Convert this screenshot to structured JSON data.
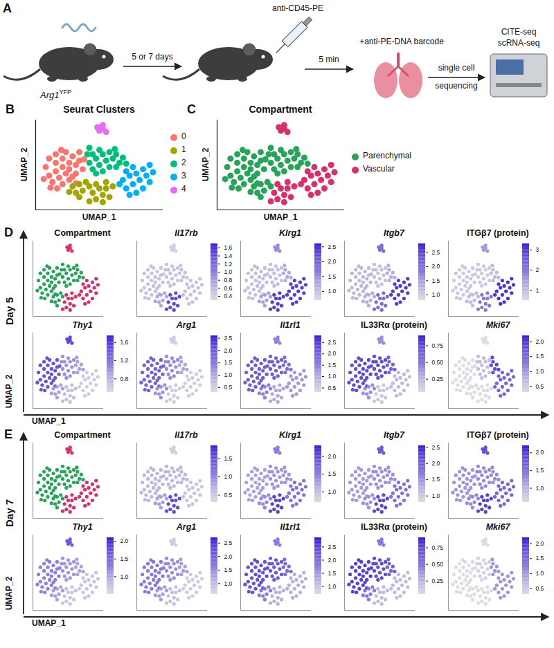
{
  "schematic": {
    "letter": "A",
    "mouse_label": "Arg1",
    "mouse_label_superscript": "YFP",
    "step1": "5 or 7 days",
    "injection": "anti-CD45-PE",
    "step2": "5 min",
    "stain": "+anti-PE-DNA barcode",
    "step3": [
      "single cell",
      "sequencing"
    ],
    "method": [
      "CITE-seq",
      "scRNA-seq"
    ]
  },
  "umap": {
    "xlim": [
      -8,
      11
    ],
    "ylim": [
      -8,
      13
    ],
    "xlabel": "UMAP_1",
    "ylabel": "UMAP_2",
    "tick_labels": false,
    "cells": [
      [
        -6.5,
        2,
        0
      ],
      [
        -6,
        0,
        0
      ],
      [
        -6,
        4,
        0
      ],
      [
        -5.5,
        -1.5,
        0
      ],
      [
        -5,
        1,
        0
      ],
      [
        -5,
        3,
        0
      ],
      [
        -5,
        5,
        0
      ],
      [
        -4.5,
        -0.5,
        0
      ],
      [
        -4,
        2,
        0
      ],
      [
        -4,
        4,
        0
      ],
      [
        -4,
        -2,
        0
      ],
      [
        -3.5,
        0.5,
        0
      ],
      [
        -3.5,
        5.5,
        0
      ],
      [
        -3,
        3,
        0
      ],
      [
        -3,
        1.5,
        0
      ],
      [
        -3,
        -1,
        0
      ],
      [
        -2.5,
        4.5,
        0
      ],
      [
        -2,
        2.5,
        0
      ],
      [
        -2,
        0.5,
        0
      ],
      [
        -1.5,
        3.5,
        0
      ],
      [
        -1.5,
        5.5,
        0
      ],
      [
        -1,
        1.5,
        0
      ],
      [
        -5.8,
        -2.8,
        0
      ],
      [
        -4.8,
        -3,
        0
      ],
      [
        -2.5,
        -0.2,
        0
      ],
      [
        -6.8,
        -0.8,
        0
      ],
      [
        -2,
        -1.8,
        0
      ],
      [
        -0.8,
        3.8,
        0
      ],
      [
        -4.2,
        6,
        0
      ],
      [
        0,
        3,
        1
      ],
      [
        0.5,
        5,
        1
      ],
      [
        0.5,
        1.5,
        1
      ],
      [
        1,
        4,
        1
      ],
      [
        1.5,
        2.5,
        1
      ],
      [
        1.5,
        6,
        1
      ],
      [
        2,
        5,
        1
      ],
      [
        2,
        1,
        1
      ],
      [
        2.5,
        3.5,
        1
      ],
      [
        3,
        2,
        1
      ],
      [
        0,
        6.5,
        1
      ],
      [
        -0.3,
        5,
        1
      ],
      [
        1,
        0.5,
        1
      ],
      [
        3,
        5.5,
        1
      ],
      [
        3.5,
        4,
        2
      ],
      [
        4,
        5,
        2
      ],
      [
        4.5,
        3,
        2
      ],
      [
        4,
        2,
        2
      ],
      [
        5,
        4.2,
        2
      ],
      [
        3.8,
        6.2,
        2
      ],
      [
        5.5,
        2.8,
        2
      ],
      [
        -2.5,
        -2.5,
        3
      ],
      [
        -2,
        -4,
        3
      ],
      [
        -1.5,
        -2,
        3
      ],
      [
        -1,
        -3.5,
        3
      ],
      [
        -0.5,
        -1.5,
        3
      ],
      [
        -1.5,
        -5,
        3
      ],
      [
        0,
        -2.5,
        3
      ],
      [
        -3,
        -3.8,
        3
      ],
      [
        0.5,
        -4,
        4
      ],
      [
        1,
        -2,
        4
      ],
      [
        1,
        -5.5,
        4
      ],
      [
        1.5,
        -3,
        4
      ],
      [
        2,
        -4.5,
        4
      ],
      [
        2.5,
        -1.5,
        4
      ],
      [
        2.5,
        -3,
        4
      ],
      [
        3,
        -5,
        4
      ],
      [
        3.5,
        -2.5,
        4
      ],
      [
        0,
        -6,
        4
      ],
      [
        2,
        -6.2,
        4
      ],
      [
        5,
        -1,
        5
      ],
      [
        5.5,
        1,
        5
      ],
      [
        5.5,
        -3,
        5
      ],
      [
        6,
        0,
        5
      ],
      [
        6.5,
        2,
        5
      ],
      [
        6.5,
        -2,
        5
      ],
      [
        7,
        -4,
        5
      ],
      [
        7,
        0.5,
        5
      ],
      [
        7.5,
        -1,
        5
      ],
      [
        8,
        1.5,
        5
      ],
      [
        8,
        -3,
        5
      ],
      [
        8.5,
        0,
        5
      ],
      [
        9,
        -1.5,
        5
      ],
      [
        9,
        2.5,
        5
      ],
      [
        9.5,
        0.8,
        5
      ],
      [
        6,
        -4.5,
        5
      ],
      [
        4.5,
        -2,
        5
      ],
      [
        1.5,
        10.5,
        6
      ],
      [
        2,
        11,
        6
      ],
      [
        2.5,
        10.2,
        6
      ],
      [
        2,
        11.8,
        6
      ],
      [
        1.2,
        11.3,
        6
      ]
    ],
    "groups": {
      "cluster": [
        "0",
        "2",
        "2",
        "1",
        "1",
        "3",
        "4"
      ],
      "compartment": [
        "Parenchymal",
        "Parenchymal",
        "Parenchymal",
        "Parenchymal",
        "Vascular",
        "Vascular",
        "Vascular"
      ]
    }
  },
  "sections": [
    {
      "letter": "D",
      "label": "Day 5"
    },
    {
      "letter": "E",
      "label": "Day 7"
    }
  ],
  "chart_data": [
    {
      "type": "scatter",
      "letter": "B",
      "title": "Seurat Clusters",
      "legend": "right",
      "series": [
        {
          "name": "0",
          "color": "#f8766d"
        },
        {
          "name": "1",
          "color": "#a3a500"
        },
        {
          "name": "2",
          "color": "#00bf7d"
        },
        {
          "name": "3",
          "color": "#00b0f6"
        },
        {
          "name": "4",
          "color": "#e76bf3"
        }
      ]
    },
    {
      "type": "scatter",
      "letter": "C",
      "title": "Compartment",
      "legend": "right",
      "series": [
        {
          "name": "Parenchymal",
          "color": "#27a45a"
        },
        {
          "name": "Vascular",
          "color": "#d9306b"
        }
      ]
    },
    {
      "type": "scatter",
      "section": "D",
      "title": "Compartment",
      "series": [
        {
          "name": "Parenchymal",
          "color": "#27a45a"
        },
        {
          "name": "Vascular",
          "color": "#d9306b"
        }
      ]
    },
    {
      "type": "scatter",
      "section": "D",
      "title": "Il17rb",
      "values": [
        0.5,
        0.5,
        0.5,
        0.7,
        1.4,
        0.5,
        0.4
      ],
      "colorbar": {
        "lim": [
          0.3,
          1.7
        ],
        "ticks": [
          0.4,
          0.6,
          0.8,
          {
            "value": 1,
            "label": "1.0"
          },
          1.2,
          1.4,
          1.6
        ]
      }
    },
    {
      "type": "scatter",
      "section": "D",
      "title": "Klrg1",
      "values": [
        1.0,
        1.0,
        1.2,
        1.3,
        2.3,
        2.3,
        1.5
      ],
      "colorbar": {
        "lim": [
          0.7,
          2.6
        ],
        "ticks": [
          {
            "value": 1,
            "label": "1.0"
          },
          1.5,
          {
            "value": 2,
            "label": "2.0"
          },
          2.5
        ]
      }
    },
    {
      "type": "scatter",
      "section": "D",
      "title": "Itgb7",
      "values": [
        1.2,
        1.1,
        1.3,
        1.3,
        2.0,
        2.5,
        2.0
      ],
      "colorbar": {
        "lim": [
          0.8,
          2.8
        ],
        "ticks": [
          {
            "value": 1,
            "label": "1.0"
          },
          1.5,
          {
            "value": 2,
            "label": "2.0"
          },
          2.5
        ]
      }
    },
    {
      "type": "scatter",
      "section": "D",
      "title": "ITGβ7 (protein)",
      "values": [
        0.8,
        0.8,
        1.0,
        1.0,
        2.0,
        3.0,
        1.5
      ],
      "colorbar": {
        "lim": [
          0.5,
          3.3
        ],
        "ticks": [
          1,
          2,
          3
        ]
      }
    },
    {
      "type": "scatter",
      "section": "D",
      "title": "Thy1",
      "values": [
        1.4,
        1.0,
        0.9,
        0.9,
        0.7,
        0.6,
        1.5
      ],
      "colorbar": {
        "lim": [
          0.5,
          1.75
        ],
        "ticks": [
          0.8,
          1.2,
          1.6
        ]
      }
    },
    {
      "type": "scatter",
      "section": "D",
      "title": "Arg1",
      "values": [
        1.8,
        1.3,
        1.0,
        1.2,
        0.5,
        0.5,
        0.5
      ],
      "colorbar": {
        "lim": [
          0.3,
          2.6
        ],
        "ticks": [
          0.5,
          {
            "value": 1,
            "label": "1.0"
          },
          1.5,
          {
            "value": 2,
            "label": "2.0"
          },
          2.5
        ]
      }
    },
    {
      "type": "scatter",
      "section": "D",
      "title": "Il1rl1",
      "values": [
        2.0,
        2.0,
        1.8,
        1.5,
        1.0,
        1.2,
        1.5
      ],
      "colorbar": {
        "lim": [
          0.3,
          2.8
        ],
        "ticks": [
          0.5,
          {
            "value": 1,
            "label": "1.0"
          },
          1.5,
          {
            "value": 2,
            "label": "2.0"
          },
          2.5
        ]
      }
    },
    {
      "type": "scatter",
      "section": "D",
      "title": "IL33Rα (protein)",
      "values": [
        0.7,
        0.7,
        0.6,
        0.4,
        0.15,
        0.2,
        0.4
      ],
      "colorbar": {
        "lim": [
          0.05,
          0.9
        ],
        "ticks": [
          0.25,
          {
            "value": 0.5,
            "label": "0.50"
          },
          0.75
        ]
      }
    },
    {
      "type": "scatter",
      "section": "D",
      "title": "Mki67",
      "values": [
        0.3,
        0.6,
        1.8,
        0.3,
        0.3,
        1.5,
        0.3
      ],
      "colorbar": {
        "lim": [
          0.3,
          2.2
        ],
        "ticks": [
          0.5,
          {
            "value": 1,
            "label": "1.0"
          },
          1.5,
          {
            "value": 2,
            "label": "2.0"
          }
        ]
      }
    },
    {
      "type": "scatter",
      "section": "E",
      "title": "Compartment",
      "series": [
        {
          "name": "Parenchymal",
          "color": "#27a45a"
        },
        {
          "name": "Vascular",
          "color": "#d9306b"
        }
      ]
    },
    {
      "type": "scatter",
      "section": "E",
      "title": "Il17rb",
      "values": [
        0.6,
        0.6,
        0.6,
        0.8,
        1.5,
        0.5,
        0.4
      ],
      "colorbar": {
        "lim": [
          0.3,
          1.85
        ],
        "ticks": [
          0.5,
          {
            "value": 1,
            "label": "1.0"
          },
          1.5
        ]
      }
    },
    {
      "type": "scatter",
      "section": "E",
      "title": "Klrg1",
      "values": [
        1.2,
        1.3,
        1.3,
        1.4,
        2.0,
        1.6,
        1.5
      ],
      "colorbar": {
        "lim": [
          0.7,
          2.3
        ],
        "ticks": [
          {
            "value": 1,
            "label": "1.0"
          },
          1.5,
          {
            "value": 2,
            "label": "2.0"
          }
        ]
      }
    },
    {
      "type": "scatter",
      "section": "E",
      "title": "Itgb7",
      "values": [
        1.4,
        1.5,
        1.5,
        1.5,
        2.2,
        1.8,
        2.0
      ],
      "colorbar": {
        "lim": [
          0.8,
          2.55
        ],
        "ticks": [
          {
            "value": 1,
            "label": "1.0"
          },
          1.5,
          {
            "value": 2,
            "label": "2.0"
          },
          2.5
        ]
      }
    },
    {
      "type": "scatter",
      "section": "E",
      "title": "ITGβ7 (protein)",
      "values": [
        1.2,
        1.3,
        1.3,
        1.3,
        1.9,
        1.6,
        1.8
      ],
      "colorbar": {
        "lim": [
          0.6,
          2.2
        ],
        "ticks": [
          {
            "value": 1,
            "label": "1.0"
          },
          1.5,
          {
            "value": 2,
            "label": "2.0"
          }
        ]
      }
    },
    {
      "type": "scatter",
      "section": "E",
      "title": "Thy1",
      "values": [
        1.3,
        1.1,
        1.0,
        1.0,
        0.7,
        0.7,
        1.6
      ],
      "colorbar": {
        "lim": [
          0.5,
          2.1
        ],
        "ticks": [
          {
            "value": 1,
            "label": "1.0"
          },
          1.5,
          {
            "value": 2,
            "label": "2.0"
          }
        ]
      }
    },
    {
      "type": "scatter",
      "section": "E",
      "title": "Arg1",
      "values": [
        1.7,
        1.5,
        1.3,
        1.3,
        0.9,
        0.8,
        0.8
      ],
      "colorbar": {
        "lim": [
          0.6,
          2.7
        ],
        "ticks": [
          {
            "value": 1,
            "label": "1.0"
          },
          1.5,
          {
            "value": 2,
            "label": "2.0"
          },
          2.5
        ]
      }
    },
    {
      "type": "scatter",
      "section": "E",
      "title": "Il1rl1",
      "values": [
        2.3,
        2.2,
        2.0,
        1.8,
        1.2,
        1.2,
        1.8
      ],
      "colorbar": {
        "lim": [
          0.7,
          2.85
        ],
        "ticks": [
          {
            "value": 1,
            "label": "1.0"
          },
          1.5,
          {
            "value": 2,
            "label": "2.0"
          },
          2.5
        ]
      }
    },
    {
      "type": "scatter",
      "section": "E",
      "title": "IL33Rα (protein)",
      "values": [
        0.75,
        0.7,
        0.6,
        0.5,
        0.2,
        0.2,
        0.5
      ],
      "colorbar": {
        "lim": [
          0.05,
          0.9
        ],
        "ticks": [
          0.25,
          {
            "value": 0.5,
            "label": "0.50"
          },
          0.75
        ]
      }
    },
    {
      "type": "scatter",
      "section": "E",
      "title": "Mki67",
      "values": [
        0.3,
        0.4,
        1.0,
        0.3,
        0.3,
        1.0,
        0.3
      ],
      "colorbar": {
        "lim": [
          0.3,
          2.2
        ],
        "ticks": [
          0.5,
          {
            "value": 1,
            "label": "1.0"
          },
          1.5,
          {
            "value": 2,
            "label": "2.0"
          }
        ]
      }
    }
  ]
}
